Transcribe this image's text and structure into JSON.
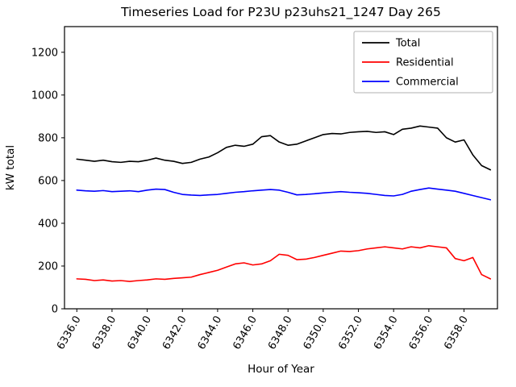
{
  "chart_data": {
    "type": "line",
    "title": "Timeseries Load for P23U p23uhs21_1247  Day 265",
    "xlabel": "Hour of Year",
    "ylabel": "kW total",
    "xlim": [
      6335.3,
      6359.9
    ],
    "ylim": [
      0,
      1320
    ],
    "grid": false,
    "legend_position": "upper right",
    "xticks": [
      6336,
      6338,
      6340,
      6342,
      6344,
      6346,
      6348,
      6350,
      6352,
      6354,
      6356,
      6358
    ],
    "xtick_labels": [
      "6336.0",
      "6338.0",
      "6340.0",
      "6342.0",
      "6344.0",
      "6346.0",
      "6348.0",
      "6350.0",
      "6352.0",
      "6354.0",
      "6356.0",
      "6358.0"
    ],
    "yticks": [
      0,
      200,
      400,
      600,
      800,
      1000,
      1200
    ],
    "ytick_labels": [
      "0",
      "200",
      "400",
      "600",
      "800",
      "1000",
      "1200"
    ],
    "x": [
      6336.0,
      6336.5,
      6337.0,
      6337.5,
      6338.0,
      6338.5,
      6339.0,
      6339.5,
      6340.0,
      6340.5,
      6341.0,
      6341.5,
      6342.0,
      6342.5,
      6343.0,
      6343.5,
      6344.0,
      6344.5,
      6345.0,
      6345.5,
      6346.0,
      6346.5,
      6347.0,
      6347.5,
      6348.0,
      6348.5,
      6349.0,
      6349.5,
      6350.0,
      6350.5,
      6351.0,
      6351.5,
      6352.0,
      6352.5,
      6353.0,
      6353.5,
      6354.0,
      6354.5,
      6355.0,
      6355.5,
      6356.0,
      6356.5,
      6357.0,
      6357.5,
      6358.0,
      6358.5,
      6359.0,
      6359.5
    ],
    "series": [
      {
        "name": "Total",
        "color": "#000000",
        "values": [
          700,
          695,
          690,
          695,
          688,
          685,
          690,
          688,
          695,
          705,
          695,
          690,
          680,
          685,
          700,
          710,
          730,
          755,
          765,
          760,
          770,
          805,
          810,
          780,
          765,
          770,
          785,
          800,
          815,
          820,
          818,
          825,
          828,
          830,
          825,
          828,
          815,
          840,
          845,
          855,
          850,
          845,
          800,
          780,
          790,
          720,
          670,
          650
        ]
      },
      {
        "name": "Residential",
        "color": "#ff0000",
        "values": [
          140,
          138,
          132,
          135,
          130,
          132,
          128,
          132,
          135,
          140,
          138,
          142,
          145,
          148,
          160,
          170,
          180,
          195,
          210,
          215,
          205,
          210,
          225,
          255,
          250,
          230,
          232,
          240,
          250,
          260,
          270,
          268,
          272,
          280,
          285,
          290,
          285,
          280,
          290,
          285,
          295,
          290,
          285,
          235,
          225,
          240,
          160,
          140
        ]
      },
      {
        "name": "Commercial",
        "color": "#0000ff",
        "values": [
          555,
          552,
          550,
          553,
          548,
          550,
          552,
          548,
          555,
          560,
          558,
          545,
          535,
          532,
          530,
          533,
          535,
          540,
          545,
          548,
          552,
          555,
          558,
          555,
          545,
          533,
          535,
          538,
          542,
          545,
          548,
          545,
          543,
          540,
          535,
          530,
          528,
          535,
          550,
          558,
          565,
          560,
          555,
          550,
          540,
          530,
          520,
          510
        ]
      }
    ],
    "legend": {
      "edge_color": "#b0b0b0",
      "entries": [
        "Total",
        "Residential",
        "Commercial"
      ]
    },
    "axis_color": "#000000",
    "background_color": "#ffffff"
  }
}
